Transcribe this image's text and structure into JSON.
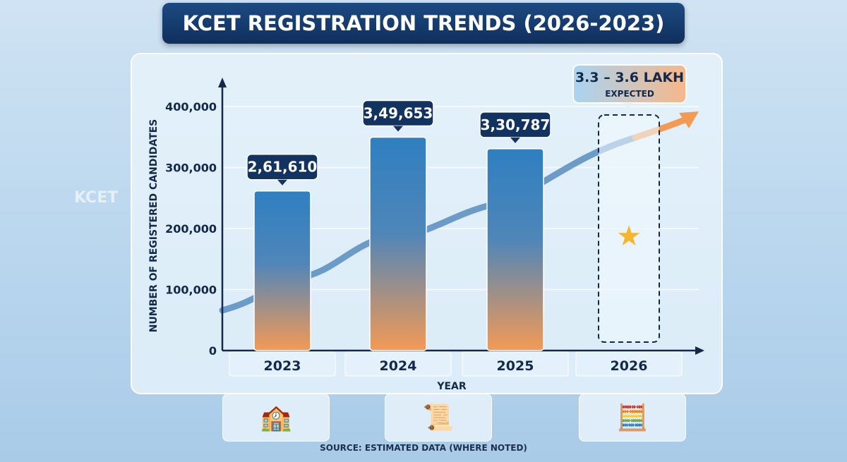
{
  "title": "KCET REGISTRATION TRENDS (2026-2023)",
  "source": "SOURCE: ESTIMATED DATA (WHERE NOTED)",
  "background_text": "KCET",
  "icons": [
    "school-building-icon",
    "certificate-icon",
    "calculator-icon"
  ],
  "chart_data": {
    "type": "bar",
    "title": "KCET REGISTRATION TRENDS (2026-2023)",
    "xlabel": "YEAR",
    "ylabel": "NUMBER OF REGISTERED CANDIDATES",
    "ylim": [
      0,
      400000
    ],
    "yticks": [
      0,
      100000,
      200000,
      300000,
      400000
    ],
    "ytick_labels": [
      "0",
      "100,000",
      "200,000",
      "300,000",
      "400,000"
    ],
    "categories": [
      "2023",
      "2024",
      "2025",
      "2026"
    ],
    "values": [
      261610,
      349653,
      330787,
      null
    ],
    "data_labels": [
      "2,61,610",
      "3,49,653",
      "3,30,787",
      ""
    ],
    "projection": {
      "category": "2026",
      "range": [
        330000,
        360000
      ],
      "label": "3.3 – 3.6 LAKH",
      "sublabel": "EXPECTED"
    },
    "grid": true,
    "colors": {
      "bar_top": "#2f7fc1",
      "bar_bottom": "#f39a55",
      "label_bg": "#12335f",
      "axis": "#13294b"
    }
  }
}
